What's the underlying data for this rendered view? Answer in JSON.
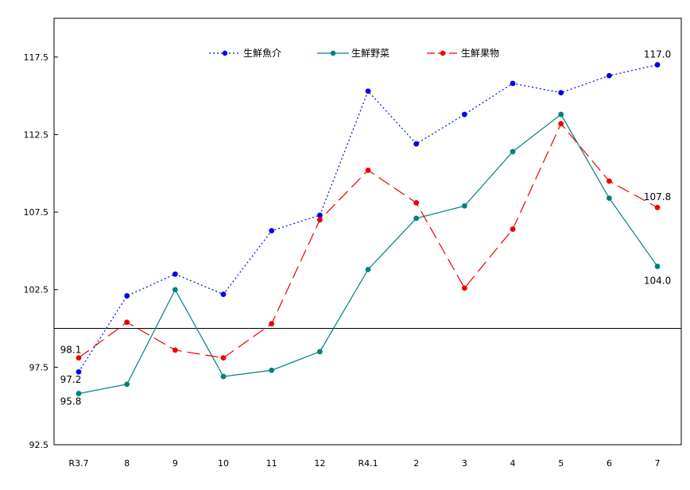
{
  "chart_data": {
    "type": "line",
    "title": "",
    "xlabel": "",
    "ylabel": "",
    "ylim": [
      92.5,
      120
    ],
    "y_ticks": [
      "92.5",
      "97.5",
      "102.5",
      "107.5",
      "112.5",
      "117.5"
    ],
    "y_tick_values": [
      92.5,
      97.5,
      102.5,
      107.5,
      112.5,
      117.5
    ],
    "baseline": 100,
    "categories": [
      "R3.7",
      "8",
      "9",
      "10",
      "11",
      "12",
      "R4.1",
      "2",
      "3",
      "4",
      "5",
      "6",
      "7"
    ],
    "grid": false,
    "legend_placement": "top-center",
    "series": [
      {
        "name": "生鮮魚介",
        "color": "#0000ee",
        "dash": "2,3",
        "values": [
          97.2,
          102.1,
          103.5,
          102.2,
          106.3,
          107.3,
          115.3,
          111.9,
          113.8,
          115.8,
          115.2,
          116.3,
          117.0
        ]
      },
      {
        "name": "生鮮野菜",
        "color": "#008080",
        "dash": "",
        "values": [
          95.8,
          96.4,
          102.5,
          96.9,
          97.3,
          98.5,
          103.8,
          107.1,
          107.9,
          111.4,
          113.8,
          108.4,
          104.0
        ]
      },
      {
        "name": "生鮮果物",
        "color": "#ee0000",
        "dash": "16,7",
        "values": [
          98.1,
          100.4,
          98.6,
          98.1,
          100.3,
          107.0,
          110.2,
          108.1,
          102.6,
          106.4,
          113.2,
          109.5,
          107.8
        ]
      }
    ],
    "annotations": [
      {
        "text": "117.0",
        "series": 0,
        "index": 12,
        "pos": "above"
      },
      {
        "text": "107.8",
        "series": 2,
        "index": 12,
        "pos": "above"
      },
      {
        "text": "104.0",
        "series": 1,
        "index": 12,
        "pos": "below"
      },
      {
        "text": "98.1",
        "series": 2,
        "index": 0,
        "pos": "above-left"
      },
      {
        "text": "97.2",
        "series": 0,
        "index": 0,
        "pos": "below-left"
      },
      {
        "text": "95.8",
        "series": 1,
        "index": 0,
        "pos": "below-left"
      }
    ]
  }
}
